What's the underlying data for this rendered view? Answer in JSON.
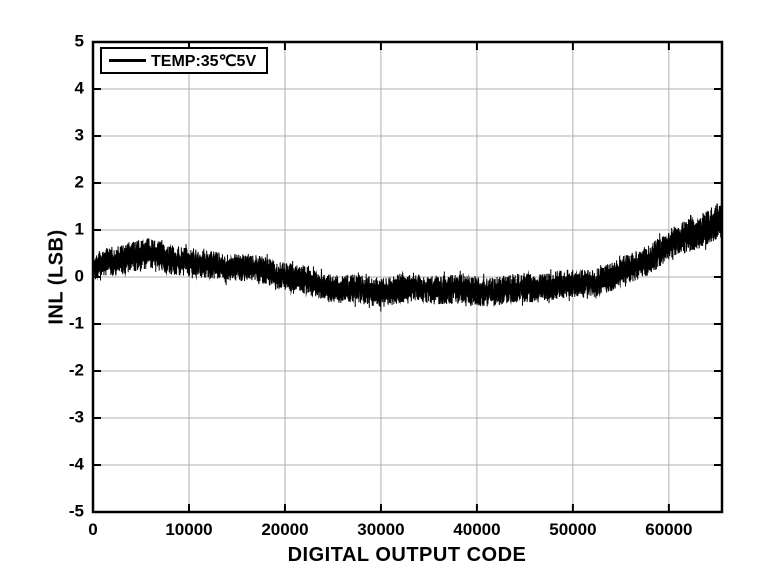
{
  "figure": {
    "background": "#ffffff"
  },
  "chart_data": {
    "type": "line",
    "title": "",
    "xlabel": "DIGITAL OUTPUT CODE",
    "ylabel": "INL (LSB)",
    "xlim": [
      0,
      65535
    ],
    "ylim": [
      -5,
      5
    ],
    "xticks": [
      0,
      10000,
      20000,
      30000,
      40000,
      50000,
      60000
    ],
    "xtick_labels": [
      "0",
      "10000",
      "20000",
      "30000",
      "40000",
      "50000",
      "60000"
    ],
    "yticks": [
      -5,
      -4,
      -3,
      -2,
      -1,
      0,
      1,
      2,
      3,
      4,
      5
    ],
    "ytick_labels": [
      "-5",
      "-4",
      "-3",
      "-2",
      "-1",
      "0",
      "1",
      "2",
      "3",
      "4",
      "5"
    ],
    "grid": true,
    "grid_color": "#b0b0b0",
    "axis_color": "#000000",
    "legend": {
      "position": "top-left",
      "entries": [
        {
          "label": "TEMP:35℃5V",
          "color": "#000000"
        }
      ]
    },
    "series": [
      {
        "name": "TEMP:35℃5V",
        "color": "#000000",
        "style": "noisy-band",
        "description": "Dense noisy INL trace described as band envelope: mean value and half-amplitude (LSB) vs digital output code",
        "envelope": [
          {
            "x": 0,
            "mean": 0.18,
            "amp": 0.3
          },
          {
            "x": 2000,
            "mean": 0.32,
            "amp": 0.32
          },
          {
            "x": 4000,
            "mean": 0.4,
            "amp": 0.33
          },
          {
            "x": 6000,
            "mean": 0.45,
            "amp": 0.33
          },
          {
            "x": 8000,
            "mean": 0.42,
            "amp": 0.32
          },
          {
            "x": 10000,
            "mean": 0.35,
            "amp": 0.31
          },
          {
            "x": 13000,
            "mean": 0.27,
            "amp": 0.3
          },
          {
            "x": 16000,
            "mean": 0.16,
            "amp": 0.3
          },
          {
            "x": 18000,
            "mean": 0.08,
            "amp": 0.3
          },
          {
            "x": 20000,
            "mean": 0.0,
            "amp": 0.3
          },
          {
            "x": 23000,
            "mean": -0.12,
            "amp": 0.3
          },
          {
            "x": 26000,
            "mean": -0.22,
            "amp": 0.3
          },
          {
            "x": 30000,
            "mean": -0.33,
            "amp": 0.32
          },
          {
            "x": 33000,
            "mean": -0.28,
            "amp": 0.31
          },
          {
            "x": 36000,
            "mean": -0.25,
            "amp": 0.31
          },
          {
            "x": 40000,
            "mean": -0.26,
            "amp": 0.31
          },
          {
            "x": 44000,
            "mean": -0.28,
            "amp": 0.31
          },
          {
            "x": 47000,
            "mean": -0.24,
            "amp": 0.3
          },
          {
            "x": 50000,
            "mean": -0.17,
            "amp": 0.3
          },
          {
            "x": 52000,
            "mean": -0.09,
            "amp": 0.3
          },
          {
            "x": 54000,
            "mean": 0.03,
            "amp": 0.3
          },
          {
            "x": 56000,
            "mean": 0.22,
            "amp": 0.31
          },
          {
            "x": 58000,
            "mean": 0.4,
            "amp": 0.32
          },
          {
            "x": 60000,
            "mean": 0.62,
            "amp": 0.33
          },
          {
            "x": 62000,
            "mean": 0.85,
            "amp": 0.35
          },
          {
            "x": 64000,
            "mean": 1.05,
            "amp": 0.37
          },
          {
            "x": 65535,
            "mean": 1.22,
            "amp": 0.4
          }
        ]
      }
    ]
  }
}
